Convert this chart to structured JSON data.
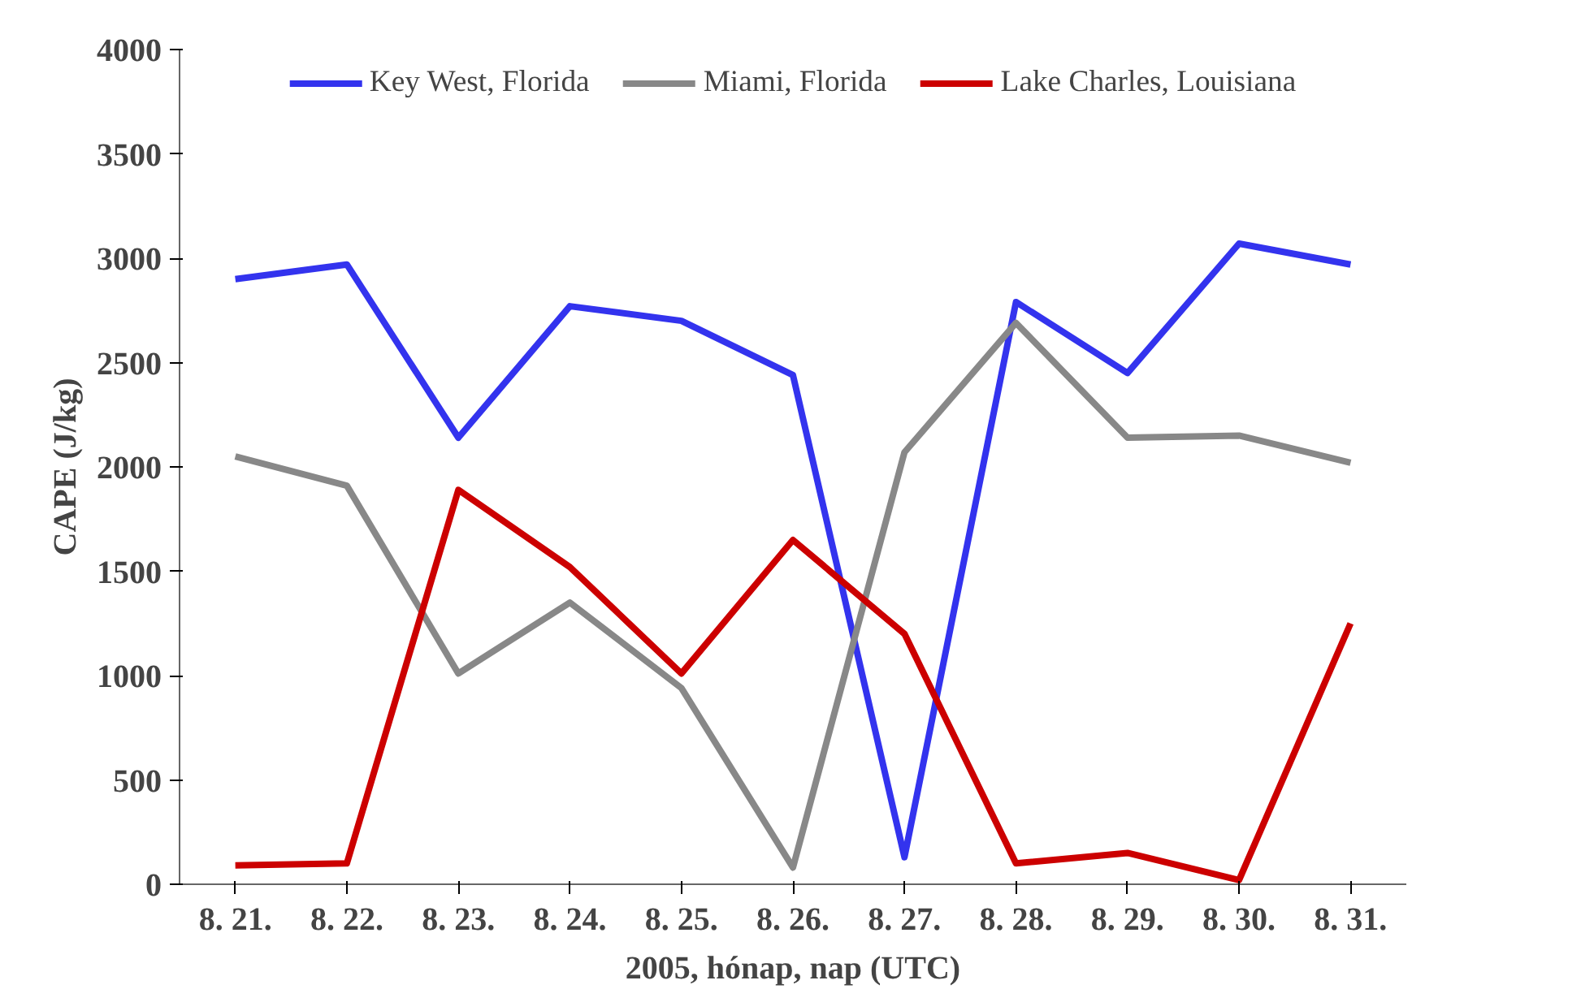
{
  "chart_data": {
    "type": "line",
    "xlabel": "2005, hónap, nap (UTC)",
    "ylabel": "CAPE (J/kg)",
    "categories": [
      "8. 21.",
      "8. 22.",
      "8. 23.",
      "8. 24.",
      "8. 25.",
      "8. 26.",
      "8. 27.",
      "8. 28.",
      "8. 29.",
      "8. 30.",
      "8. 31."
    ],
    "series": [
      {
        "name": "Key West, Florida",
        "color": "#3333ee",
        "values": [
          2900,
          2970,
          2140,
          2770,
          2700,
          2440,
          130,
          2790,
          2450,
          3070,
          2970
        ]
      },
      {
        "name": "Miami, Florida",
        "color": "#888888",
        "values": [
          2050,
          1910,
          1010,
          1350,
          940,
          80,
          2070,
          2690,
          2140,
          2150,
          2020
        ]
      },
      {
        "name": "Lake Charles, Louisiana",
        "color": "#cc0000",
        "values": [
          90,
          100,
          1890,
          1520,
          1010,
          1650,
          1200,
          100,
          150,
          20,
          1250
        ]
      }
    ],
    "ylim": [
      0,
      4000
    ],
    "yticks": [
      0,
      500,
      1000,
      1500,
      2000,
      2500,
      3000,
      3500,
      4000
    ],
    "grid": false,
    "legend": "top",
    "marker": "none",
    "line_style": "solid"
  }
}
